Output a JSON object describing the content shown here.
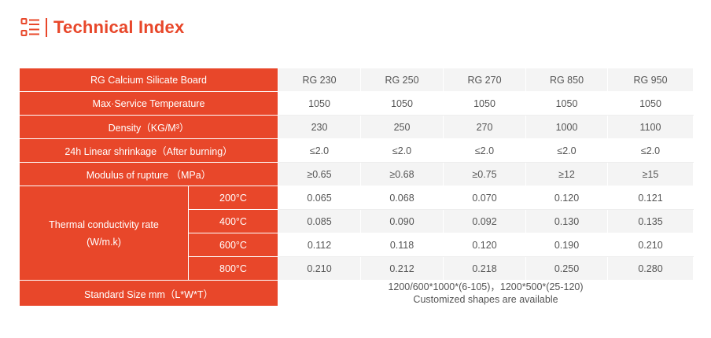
{
  "page": {
    "title": "Technical Index"
  },
  "table": {
    "header": [
      "RG Calcium Silicate Board",
      "RG 230",
      "RG 250",
      "RG 270",
      "RG 850",
      "RG 950"
    ],
    "rows": [
      {
        "label": "Max·Service Temperature",
        "values": [
          "1050",
          "1050",
          "1050",
          "1050",
          "1050"
        ]
      },
      {
        "label": "Density（KG/M³）",
        "values": [
          "230",
          "250",
          "270",
          "1000",
          "1100"
        ]
      },
      {
        "label": "24h Linear shrinkage（After burning）",
        "values": [
          "≤2.0",
          "≤2.0",
          "≤2.0",
          "≤2.0",
          "≤2.0"
        ]
      },
      {
        "label": "Modulus of rupture （MPa）",
        "values": [
          "≥0.65",
          "≥0.68",
          "≥0.75",
          "≥12",
          "≥15"
        ]
      }
    ],
    "thermal": {
      "label_line1": "Thermal conductivity rate",
      "label_line2": "(W/m.k)",
      "rows": [
        {
          "temp": "200°C",
          "values": [
            "0.065",
            "0.068",
            "0.070",
            "0.120",
            "0.121"
          ]
        },
        {
          "temp": "400°C",
          "values": [
            "0.085",
            "0.090",
            "0.092",
            "0.130",
            "0.135"
          ]
        },
        {
          "temp": "600°C",
          "values": [
            "0.112",
            "0.118",
            "0.120",
            "0.190",
            "0.210"
          ]
        },
        {
          "temp": "800°C",
          "values": [
            "0.210",
            "0.212",
            "0.218",
            "0.250",
            "0.280"
          ]
        }
      ]
    },
    "standard_size": {
      "label": "Standard Size mm（L*W*T）",
      "line1": "1200/600*1000*(6-105)，1200*500*(25-120)",
      "line2": "Customized shapes are available"
    }
  },
  "colors": {
    "accent": "#e8472a",
    "row_shade": "#f4f4f4",
    "value_text": "#555555"
  }
}
